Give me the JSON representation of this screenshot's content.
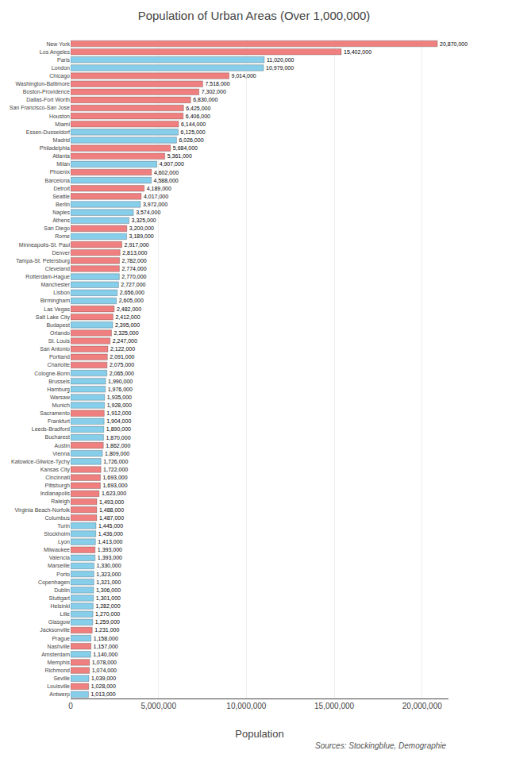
{
  "chart_data": {
    "type": "bar",
    "orientation": "horizontal",
    "title": "Population of Urban Areas (Over 1,000,000)",
    "xlabel": "Population",
    "annotations": [
      "Sources: Stockingblue, Demographie"
    ],
    "categories": [
      "New York",
      "Los Angeles",
      "Paris",
      "London",
      "Chicago",
      "Washington-Baltimore",
      "Boston-Providence",
      "Dallas-Fort Worth",
      "San Francisco-San Jose",
      "Houston",
      "Miami",
      "Essen-Dusseldorf",
      "Madrid",
      "Philadelphia",
      "Atlanta",
      "Milan",
      "Phoenix",
      "Barcelona",
      "Detroit",
      "Seattle",
      "Berlin",
      "Naples",
      "Athens",
      "San Diego",
      "Rome",
      "Minneapolis-St. Paul",
      "Denver",
      "Tampa-St. Petersburg",
      "Cleveland",
      "Rotterdam-Hague",
      "Manchester",
      "Lisbon",
      "Birmingham",
      "Las Vegas",
      "Salt Lake City",
      "Budapest",
      "Orlando",
      "St. Louis",
      "San Antonio",
      "Portland",
      "Charlotte",
      "Cologne-Bonn",
      "Brussels",
      "Hamburg",
      "Warsaw",
      "Munich",
      "Sacramento",
      "Frankfurt",
      "Leeds-Bradford",
      "Bucharest",
      "Austin",
      "Vienna",
      "Katowice-Gliwice-Tychy",
      "Kansas City",
      "Cincinnati",
      "Pittsburgh",
      "Indianapolis",
      "Raleigh",
      "Virginia Beach-Norfolk",
      "Columbus",
      "Turin",
      "Stockholm",
      "Lyon",
      "Milwaukee",
      "Valencia",
      "Marseille",
      "Porto",
      "Copenhagen",
      "Dublin",
      "Stuttgart",
      "Helsinki",
      "Lille",
      "Glasgow",
      "Jacksonville",
      "Prague",
      "Nashville",
      "Amsterdam",
      "Memphis",
      "Richmond",
      "Seville",
      "Louisville",
      "Antwerp"
    ],
    "values": [
      20870000,
      15402000,
      11020000,
      10979000,
      9014000,
      7518000,
      7302000,
      6830000,
      6425000,
      6406000,
      6144000,
      6125000,
      6026000,
      5684000,
      5361000,
      4907000,
      4602000,
      4588000,
      4189000,
      4017000,
      3972000,
      3574000,
      3325000,
      3200000,
      3189000,
      2917000,
      2813000,
      2782000,
      2774000,
      2770000,
      2727000,
      2656000,
      2605000,
      2482000,
      2412000,
      2395000,
      2325000,
      2247000,
      2122000,
      2091000,
      2075000,
      2065000,
      1990000,
      1976000,
      1935000,
      1928000,
      1912000,
      1904000,
      1890000,
      1870000,
      1862000,
      1809000,
      1726000,
      1722000,
      1693000,
      1693000,
      1623000,
      1493000,
      1488000,
      1487000,
      1445000,
      1436000,
      1413000,
      1393000,
      1393000,
      1330000,
      1323000,
      1321000,
      1306000,
      1301000,
      1282000,
      1270000,
      1259000,
      1231000,
      1158000,
      1157000,
      1140000,
      1078000,
      1074000,
      1039000,
      1028000,
      1013000
    ],
    "value_labels": [
      "20,870,000",
      "15,402,000",
      "11,020,000",
      "10,979,000",
      "9,014,000",
      "7,518,000",
      "7,302,000",
      "6,830,000",
      "6,425,000",
      "6,406,000",
      "6,144,000",
      "6,125,000",
      "6,026,000",
      "5,684,000",
      "5,361,000",
      "4,907,000",
      "4,602,000",
      "4,588,000",
      "4,189,000",
      "4,017,000",
      "3,972,000",
      "3,574,000",
      "3,325,000",
      "3,200,000",
      "3,189,000",
      "2,917,000",
      "2,813,000",
      "2,782,000",
      "2,774,000",
      "2,770,000",
      "2,727,000",
      "2,656,000",
      "2,605,000",
      "2,482,000",
      "2,412,000",
      "2,395,000",
      "2,325,000",
      "2,247,000",
      "2,122,000",
      "2,091,000",
      "2,075,000",
      "2,065,000",
      "1,990,000",
      "1,976,000",
      "1,935,000",
      "1,928,000",
      "1,912,000",
      "1,904,000",
      "1,890,000",
      "1,870,000",
      "1,862,000",
      "1,809,000",
      "1,726,000",
      "1,722,000",
      "1,693,000",
      "1,693,000",
      "1,623,000",
      "1,493,000",
      "1,488,000",
      "1,487,000",
      "1,445,000",
      "1,436,000",
      "1,413,000",
      "1,393,000",
      "1,393,000",
      "1,330,000",
      "1,323,000",
      "1,321,000",
      "1,306,000",
      "1,301,000",
      "1,282,000",
      "1,270,000",
      "1,259,000",
      "1,231,000",
      "1,158,000",
      "1,157,000",
      "1,140,000",
      "1,078,000",
      "1,074,000",
      "1,039,000",
      "1,028,000",
      "1,013,000"
    ],
    "colors": [
      "#f08080",
      "#f08080",
      "#87ceeb",
      "#87ceeb",
      "#f08080",
      "#f08080",
      "#f08080",
      "#f08080",
      "#f08080",
      "#f08080",
      "#f08080",
      "#87ceeb",
      "#87ceeb",
      "#f08080",
      "#f08080",
      "#87ceeb",
      "#f08080",
      "#87ceeb",
      "#f08080",
      "#f08080",
      "#87ceeb",
      "#87ceeb",
      "#87ceeb",
      "#f08080",
      "#87ceeb",
      "#f08080",
      "#f08080",
      "#f08080",
      "#f08080",
      "#87ceeb",
      "#87ceeb",
      "#87ceeb",
      "#87ceeb",
      "#f08080",
      "#f08080",
      "#87ceeb",
      "#f08080",
      "#f08080",
      "#f08080",
      "#f08080",
      "#f08080",
      "#87ceeb",
      "#87ceeb",
      "#87ceeb",
      "#87ceeb",
      "#87ceeb",
      "#f08080",
      "#87ceeb",
      "#87ceeb",
      "#87ceeb",
      "#f08080",
      "#87ceeb",
      "#87ceeb",
      "#f08080",
      "#f08080",
      "#f08080",
      "#f08080",
      "#f08080",
      "#f08080",
      "#f08080",
      "#87ceeb",
      "#87ceeb",
      "#87ceeb",
      "#f08080",
      "#87ceeb",
      "#87ceeb",
      "#87ceeb",
      "#87ceeb",
      "#87ceeb",
      "#87ceeb",
      "#87ceeb",
      "#87ceeb",
      "#87ceeb",
      "#f08080",
      "#87ceeb",
      "#f08080",
      "#87ceeb",
      "#f08080",
      "#f08080",
      "#87ceeb",
      "#f08080",
      "#87ceeb"
    ],
    "xlim": [
      0,
      21500000
    ],
    "xticks": [
      0,
      {
        "value": 5000000,
        "label": "5,000,000"
      },
      {
        "value": 10000000,
        "label": "10,000,000"
      },
      {
        "value": 15000000,
        "label": "15,000,000"
      },
      {
        "value": 20000000,
        "label": "20,000,000"
      }
    ],
    "grid": true,
    "data_labels": true
  }
}
